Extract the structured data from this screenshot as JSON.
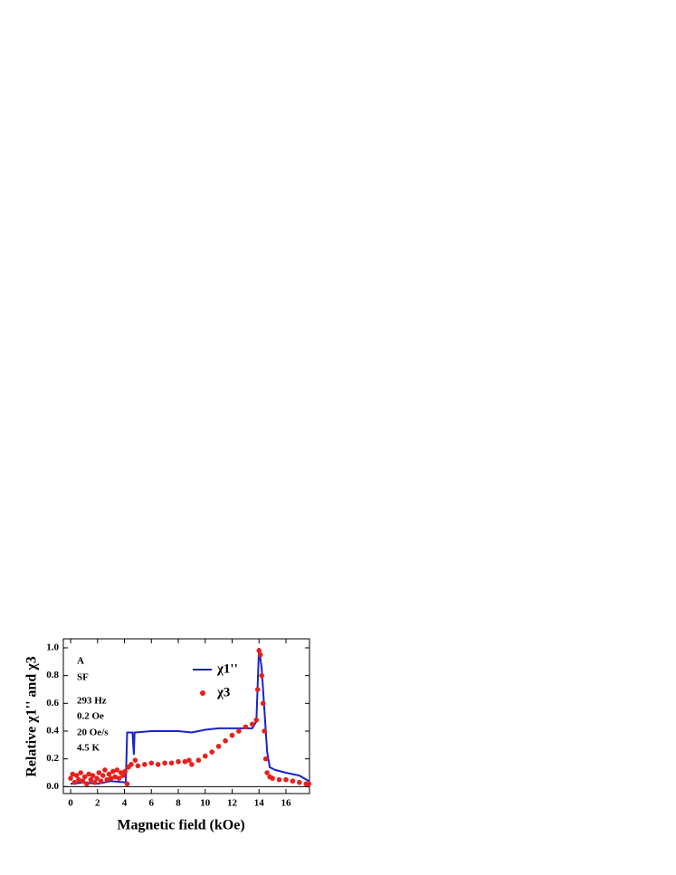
{
  "chart_data": {
    "type": "line-scatter",
    "x_label": "Magnetic field (kOe)",
    "y_label": "Relative χ1'' and χ3",
    "annotations": [
      "A",
      "SF",
      "293 Hz",
      "0.2 Oe",
      "20 Oe/s",
      "4.5 K"
    ],
    "xlim": [
      -0.54,
      17.75
    ],
    "ylim": [
      -0.05,
      1.065
    ],
    "xticks": [
      0,
      2,
      4,
      6,
      8,
      10,
      12,
      14,
      16
    ],
    "yticks": [
      {
        "value": 0,
        "label": "0.0"
      },
      0.2,
      0.4,
      0.6,
      0.8,
      {
        "value": 1,
        "label": "1.0"
      }
    ],
    "series": [
      {
        "name": "χ1''",
        "color": "#1a22c8",
        "style": "line",
        "x": [
          0,
          1,
          2,
          3,
          4.1,
          4.2,
          4.6,
          4.7,
          4.75,
          6,
          8,
          9,
          10,
          11,
          12,
          13.5,
          13.8,
          14.0,
          14.2,
          14.4,
          14.6,
          14.8,
          15.2,
          16,
          17,
          17.7
        ],
        "values": [
          0.02,
          0.03,
          0.02,
          0.04,
          0.03,
          0.39,
          0.39,
          0.23,
          0.39,
          0.4,
          0.4,
          0.39,
          0.41,
          0.42,
          0.42,
          0.42,
          0.47,
          1.0,
          0.85,
          0.55,
          0.25,
          0.14,
          0.12,
          0.1,
          0.08,
          0.04
        ]
      },
      {
        "name": "χ3",
        "color": "#e8201c",
        "style": "scatter",
        "x": [
          0,
          0.15,
          0.3,
          0.45,
          0.6,
          0.75,
          0.9,
          1.05,
          1.2,
          1.35,
          1.5,
          1.65,
          1.8,
          1.95,
          2.1,
          2.25,
          2.4,
          2.55,
          2.7,
          2.85,
          3.0,
          3.15,
          3.3,
          3.45,
          3.6,
          3.75,
          3.9,
          4.05,
          4.2,
          4.3,
          4.5,
          4.8,
          5.0,
          5.5,
          6,
          6.5,
          7,
          7.5,
          8,
          8.5,
          8.8,
          9.0,
          9.5,
          10,
          10.5,
          11,
          11.5,
          12,
          12.5,
          13,
          13.5,
          13.8,
          13.9,
          14.0,
          14.1,
          14.2,
          14.3,
          14.4,
          14.5,
          14.6,
          14.8,
          15,
          15.5,
          16,
          16.5,
          17,
          17.5,
          17.7
        ],
        "values": [
          0.06,
          0.09,
          0.03,
          0.08,
          0.05,
          0.1,
          0.04,
          0.07,
          0.02,
          0.09,
          0.05,
          0.08,
          0.03,
          0.06,
          0.1,
          0.04,
          0.08,
          0.12,
          0.05,
          0.09,
          0.06,
          0.11,
          0.07,
          0.12,
          0.06,
          0.1,
          0.08,
          0.11,
          0.02,
          0.14,
          0.16,
          0.19,
          0.15,
          0.16,
          0.17,
          0.16,
          0.17,
          0.17,
          0.18,
          0.18,
          0.19,
          0.16,
          0.19,
          0.22,
          0.25,
          0.29,
          0.33,
          0.37,
          0.4,
          0.43,
          0.45,
          0.48,
          0.7,
          0.98,
          0.95,
          0.8,
          0.6,
          0.4,
          0.2,
          0.1,
          0.07,
          0.06,
          0.05,
          0.05,
          0.04,
          0.03,
          0.02,
          0.02
        ]
      }
    ]
  }
}
